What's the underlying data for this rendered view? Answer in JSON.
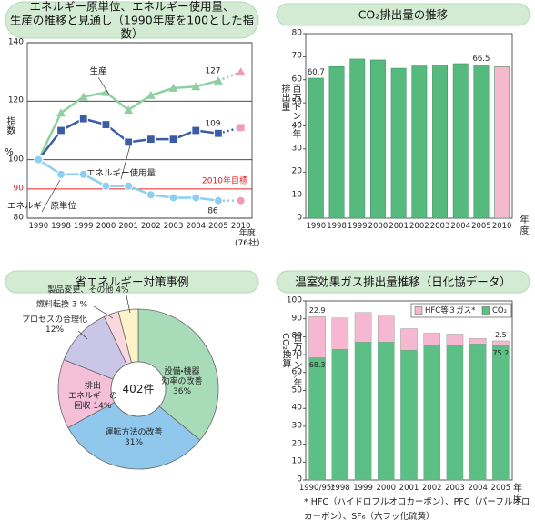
{
  "chart_data": [
    {
      "type": "line",
      "title": "エネルギー原単位、エネルギー使用量、\n生産の推移と見通し（1990年度を100とした指数）",
      "y_label": "指数",
      "y_unit": "%",
      "x_label": "年度\n(76社)",
      "categories": [
        "1990",
        "1998",
        "1999",
        "2000",
        "2001",
        "2002",
        "2003",
        "2004",
        "2005",
        "2010"
      ],
      "ylim": [
        80,
        140
      ],
      "yticks": [
        80,
        100,
        120,
        140
      ],
      "grid": true,
      "target": {
        "value": 90,
        "label": "2010年目標",
        "color": "#e02020"
      },
      "projection_color": "#f29bb8",
      "series": [
        {
          "name": "生産",
          "color": "#8fd0a0",
          "marker": "triangle",
          "values": [
            100,
            116,
            121.5,
            123,
            117,
            122,
            124.5,
            125,
            127,
            130
          ],
          "value_labels": [
            null,
            null,
            null,
            null,
            null,
            null,
            null,
            null,
            "127",
            null
          ]
        },
        {
          "name": "エネルギー使用量",
          "color": "#3a5ca8",
          "marker": "square",
          "values": [
            100,
            110,
            114,
            112,
            106,
            107,
            107,
            110,
            109,
            111
          ],
          "value_labels": [
            null,
            null,
            null,
            null,
            null,
            null,
            null,
            null,
            "109",
            null
          ]
        },
        {
          "name": "エネルギー原単位",
          "color": "#8ccff0",
          "marker": "circle",
          "values": [
            100,
            95,
            95,
            91,
            91,
            88,
            87,
            87,
            86,
            86
          ],
          "value_labels": [
            null,
            null,
            null,
            null,
            null,
            null,
            null,
            null,
            "86",
            null
          ]
        }
      ]
    },
    {
      "type": "bar",
      "title": "CO₂排出量の推移",
      "y_label": "排出量\n百万トン／年",
      "x_label": "年度",
      "categories": [
        "1990",
        "1998",
        "1999",
        "2000",
        "2001",
        "2002",
        "2003",
        "2004",
        "2005",
        "2010"
      ],
      "values": [
        60.7,
        65.7,
        69,
        68.6,
        65,
        66,
        66.5,
        67,
        66.5,
        65.7
      ],
      "value_labels": [
        "60.7",
        null,
        null,
        null,
        null,
        null,
        null,
        null,
        "66.5",
        null
      ],
      "colors": [
        "#56b97e",
        "#56b97e",
        "#56b97e",
        "#56b97e",
        "#56b97e",
        "#56b97e",
        "#56b97e",
        "#56b97e",
        "#56b97e",
        "#f5b9cd"
      ],
      "ylim": [
        0,
        80
      ],
      "yticks": [
        0,
        10,
        20,
        30,
        40,
        50,
        60,
        70,
        80
      ],
      "grid": false
    },
    {
      "type": "pie",
      "title": "省エネルギー対策事例",
      "center_label": "402件",
      "categories": [
        "設備・機器\n効率の改善",
        "運転方法の改善",
        "排出\nエネルギーの\n回収",
        "プロセスの合理化",
        "燃料転換",
        "製品変更、その他"
      ],
      "values": [
        36,
        31,
        14,
        12,
        3,
        4
      ],
      "value_labels": [
        "36%",
        "31%",
        "14%",
        "12%",
        "3 %",
        "4%"
      ],
      "colors": [
        "#a8dcb8",
        "#8fc8ec",
        "#f4c0d8",
        "#cac6e8",
        "#fbd8e0",
        "#fdf3c8"
      ]
    },
    {
      "type": "stacked_bar",
      "title": "温室効果ガス排出量推移（日化協データ）",
      "y_label": "CO₂換算\n百万トン／年",
      "x_label": "年度",
      "categories": [
        "1990/95*",
        "1998",
        "1999",
        "2000",
        "2001",
        "2002",
        "2003",
        "2004",
        "2005"
      ],
      "ylim": [
        0,
        100
      ],
      "yticks": [
        0,
        10,
        20,
        30,
        40,
        50,
        60,
        70,
        80,
        90,
        100
      ],
      "grid": false,
      "series": [
        {
          "name": "CO₂",
          "color": "#5cbf85",
          "values": [
            68.3,
            73,
            77,
            77,
            72.5,
            75,
            75,
            76,
            75.2
          ],
          "value_labels": [
            "68.3",
            null,
            null,
            null,
            null,
            null,
            null,
            null,
            "75.2"
          ]
        },
        {
          "name": "HFC等３ガス*",
          "color": "#f6b8d0",
          "values": [
            22.9,
            17.5,
            16.5,
            14.5,
            12,
            7,
            6.5,
            3,
            2.5
          ],
          "value_labels": [
            "22.9",
            null,
            null,
            null,
            null,
            null,
            null,
            null,
            "2.5"
          ]
        }
      ],
      "note": "* HFC（ハイドロフルオロカーボン）、PFC（パーフルオロカーボン）、SF₆（六フッ化硫黄）"
    }
  ]
}
